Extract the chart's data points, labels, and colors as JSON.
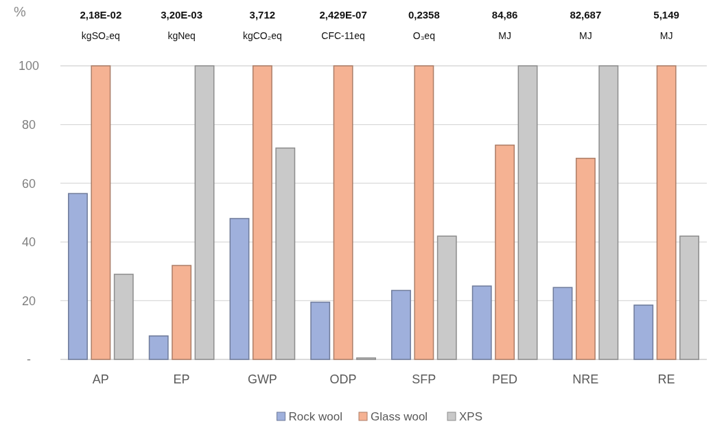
{
  "chart_data": {
    "type": "bar",
    "ylabel": "%",
    "categories": [
      "AP",
      "EP",
      "GWP",
      "ODP",
      "SFP",
      "PED",
      "NRE",
      "RE"
    ],
    "series": [
      {
        "name": "Rock wool",
        "color": "#9fb0dc",
        "values": [
          56.5,
          8,
          48,
          19.5,
          23.5,
          25,
          24.5,
          18.5
        ]
      },
      {
        "name": "Glass wool",
        "color": "#f5b293",
        "values": [
          100,
          32,
          100,
          100,
          100,
          73,
          68.5,
          100
        ]
      },
      {
        "name": "XPS",
        "color": "#c9c9c9",
        "values": [
          29,
          100,
          72,
          0.5,
          42,
          100,
          100,
          42
        ]
      }
    ],
    "ylim": [
      0,
      100
    ],
    "yticks": [
      {
        "value": 0,
        "label": "-"
      },
      20,
      40,
      60,
      80,
      100
    ],
    "grid": "y",
    "legend": "bottom",
    "annotations": [
      "2,18E-02",
      "3,20E-03",
      "3,712",
      "2,429E-07",
      "0,2358",
      "84,86",
      "82,687",
      "5,149",
      "kgSO₂eq",
      "kgNeq",
      "kgCO₂eq",
      "CFC-11eq",
      "O₃eq",
      "MJ",
      "MJ",
      "MJ"
    ]
  }
}
